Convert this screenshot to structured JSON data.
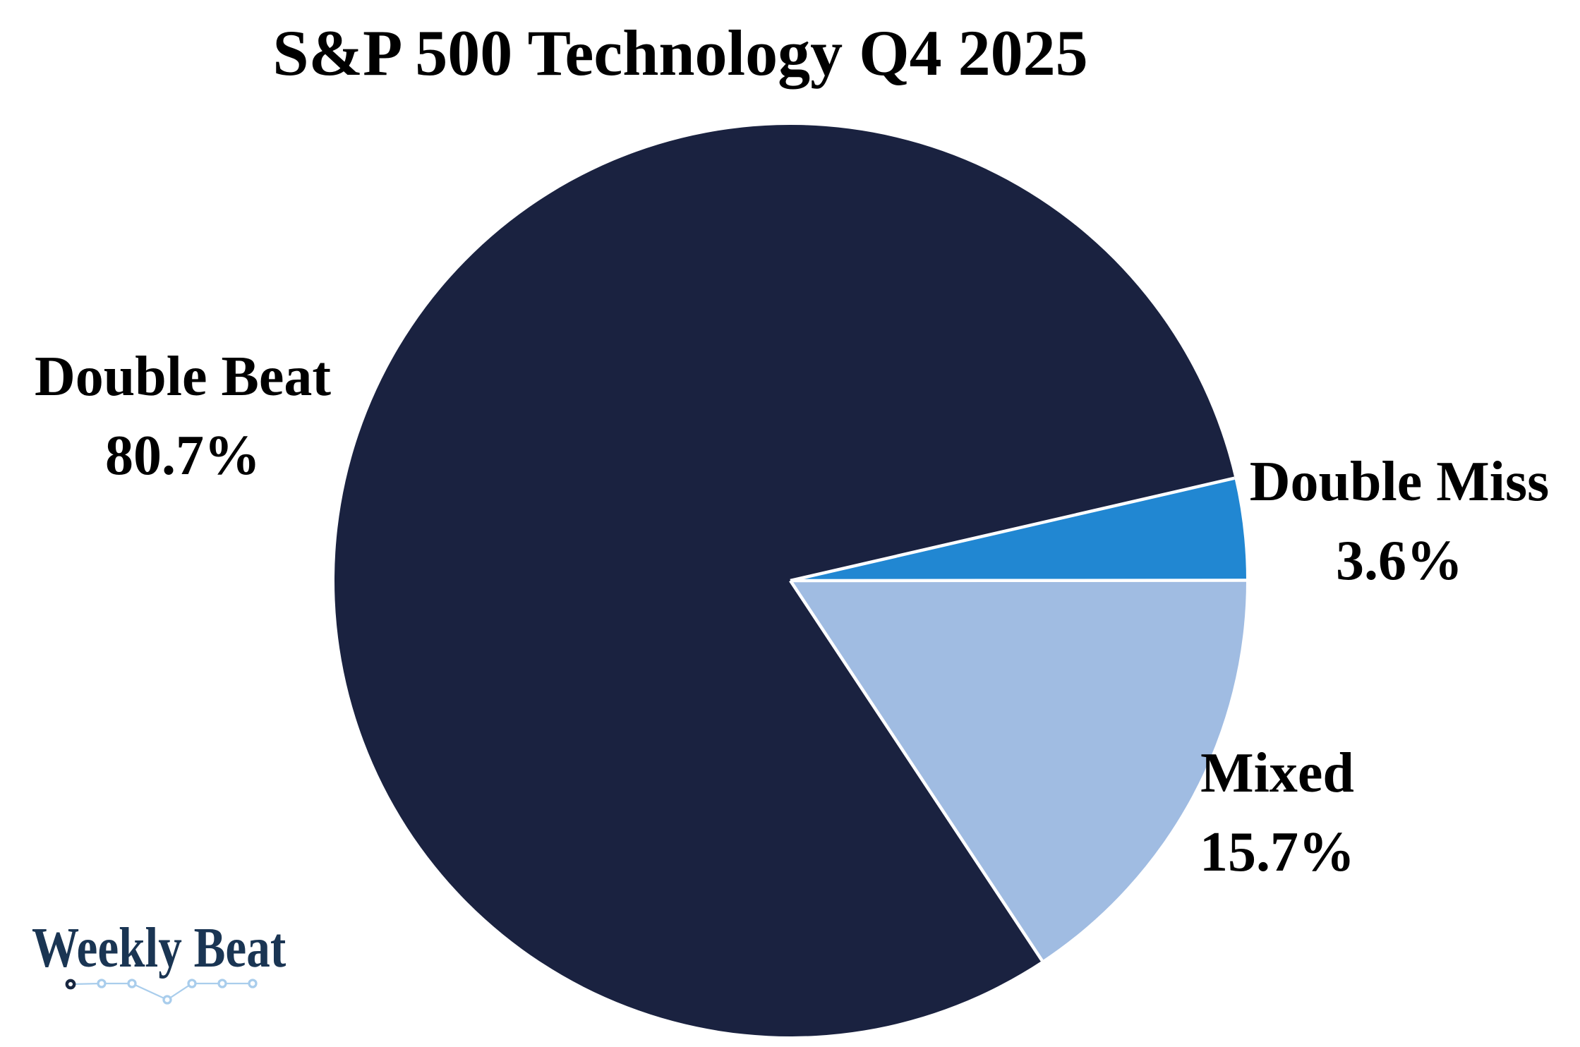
{
  "chart_data": {
    "type": "pie",
    "title": "S&P 500 Technology Q4 2025",
    "slices": [
      {
        "label": "Double Beat",
        "value": 80.7,
        "pct_label": "80.7%",
        "color": "#1a2240"
      },
      {
        "label": "Mixed",
        "value": 15.7,
        "pct_label": "15.7%",
        "color": "#a0bce2"
      },
      {
        "label": "Double Miss",
        "value": 3.6,
        "pct_label": "3.6%",
        "color": "#2187d2"
      }
    ],
    "start_angle_deg": 13,
    "direction": "counterclockwise",
    "separator_color": "#ffffff",
    "background": "#ffffff",
    "text_color": "#000000",
    "legend": "none"
  },
  "logo": {
    "text": "Weekly Beat",
    "colors": {
      "navy": "#1a3553",
      "dark_marker": "#172640",
      "light_blue": "#a9cdec",
      "marker_fill": "#ffffff"
    }
  }
}
